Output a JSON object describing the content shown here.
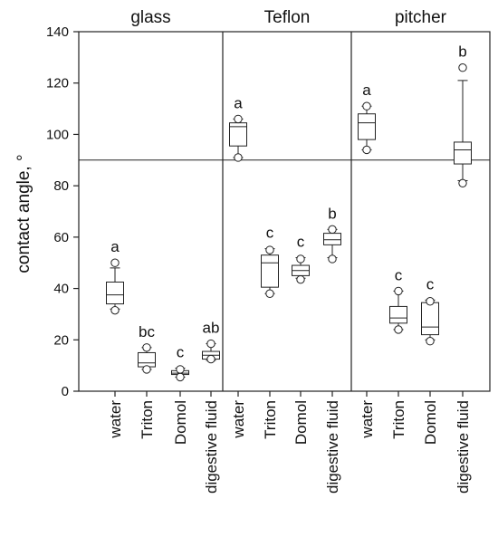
{
  "chart_data": {
    "type": "box",
    "ylabel": "contact angle, °",
    "ylim": [
      0,
      140
    ],
    "y_ticks": [
      0,
      20,
      40,
      60,
      80,
      100,
      120,
      140
    ],
    "reference_line": 90,
    "categories": [
      "water",
      "Triton",
      "Domol",
      "digestive fluid"
    ],
    "panels": [
      {
        "name": "glass",
        "boxes": [
          {
            "category": "water",
            "q1": 34,
            "median": 37.5,
            "q3": 42.5,
            "whisker_low": 32,
            "whisker_high": 48,
            "outliers": [
              31.5,
              50
            ],
            "letter": "a"
          },
          {
            "category": "Triton",
            "q1": 9.5,
            "median": 11,
            "q3": 15,
            "whisker_low": 8.5,
            "whisker_high": 17,
            "outliers": [
              8.5,
              17
            ],
            "letter": "bc"
          },
          {
            "category": "Domol",
            "q1": 6.5,
            "median": 7,
            "q3": 8,
            "whisker_low": 5.5,
            "whisker_high": 9,
            "outliers": [
              5.5,
              8.5
            ],
            "letter": "c"
          },
          {
            "category": "digestive fluid",
            "q1": 12.5,
            "median": 14,
            "q3": 15.5,
            "whisker_low": 12,
            "whisker_high": 18.5,
            "outliers": [
              12.5,
              18.5
            ],
            "letter": "ab"
          }
        ]
      },
      {
        "name": "Teflon",
        "boxes": [
          {
            "category": "water",
            "q1": 95.5,
            "median": 103,
            "q3": 104.5,
            "whisker_low": 91,
            "whisker_high": 106,
            "outliers": [
              91,
              106
            ],
            "letter": "a"
          },
          {
            "category": "Triton",
            "q1": 40.5,
            "median": 50,
            "q3": 53,
            "whisker_low": 38,
            "whisker_high": 55.5,
            "outliers": [
              38,
              55
            ],
            "letter": "c"
          },
          {
            "category": "Domol",
            "q1": 45,
            "median": 47,
            "q3": 49,
            "whisker_low": 44,
            "whisker_high": 52,
            "outliers": [
              43.5,
              51.5
            ],
            "letter": "c"
          },
          {
            "category": "digestive fluid",
            "q1": 57,
            "median": 59,
            "q3": 61.5,
            "whisker_low": 52,
            "whisker_high": 63,
            "outliers": [
              51.5,
              63
            ],
            "letter": "b"
          }
        ]
      },
      {
        "name": "pitcher",
        "boxes": [
          {
            "category": "water",
            "q1": 98,
            "median": 104.5,
            "q3": 108,
            "whisker_low": 94,
            "whisker_high": 111,
            "outliers": [
              94,
              111
            ],
            "letter": "a"
          },
          {
            "category": "Triton",
            "q1": 26.5,
            "median": 28.5,
            "q3": 33,
            "whisker_low": 24,
            "whisker_high": 39,
            "outliers": [
              24,
              39
            ],
            "letter": "c"
          },
          {
            "category": "Domol",
            "q1": 22,
            "median": 25,
            "q3": 34.5,
            "whisker_low": 20,
            "whisker_high": 35.5,
            "outliers": [
              19.5,
              35
            ],
            "letter": "c"
          },
          {
            "category": "digestive fluid",
            "q1": 88.5,
            "median": 94,
            "q3": 97,
            "whisker_low": 82,
            "whisker_high": 121,
            "outliers": [
              81,
              126
            ],
            "letter": "b"
          }
        ]
      }
    ]
  }
}
